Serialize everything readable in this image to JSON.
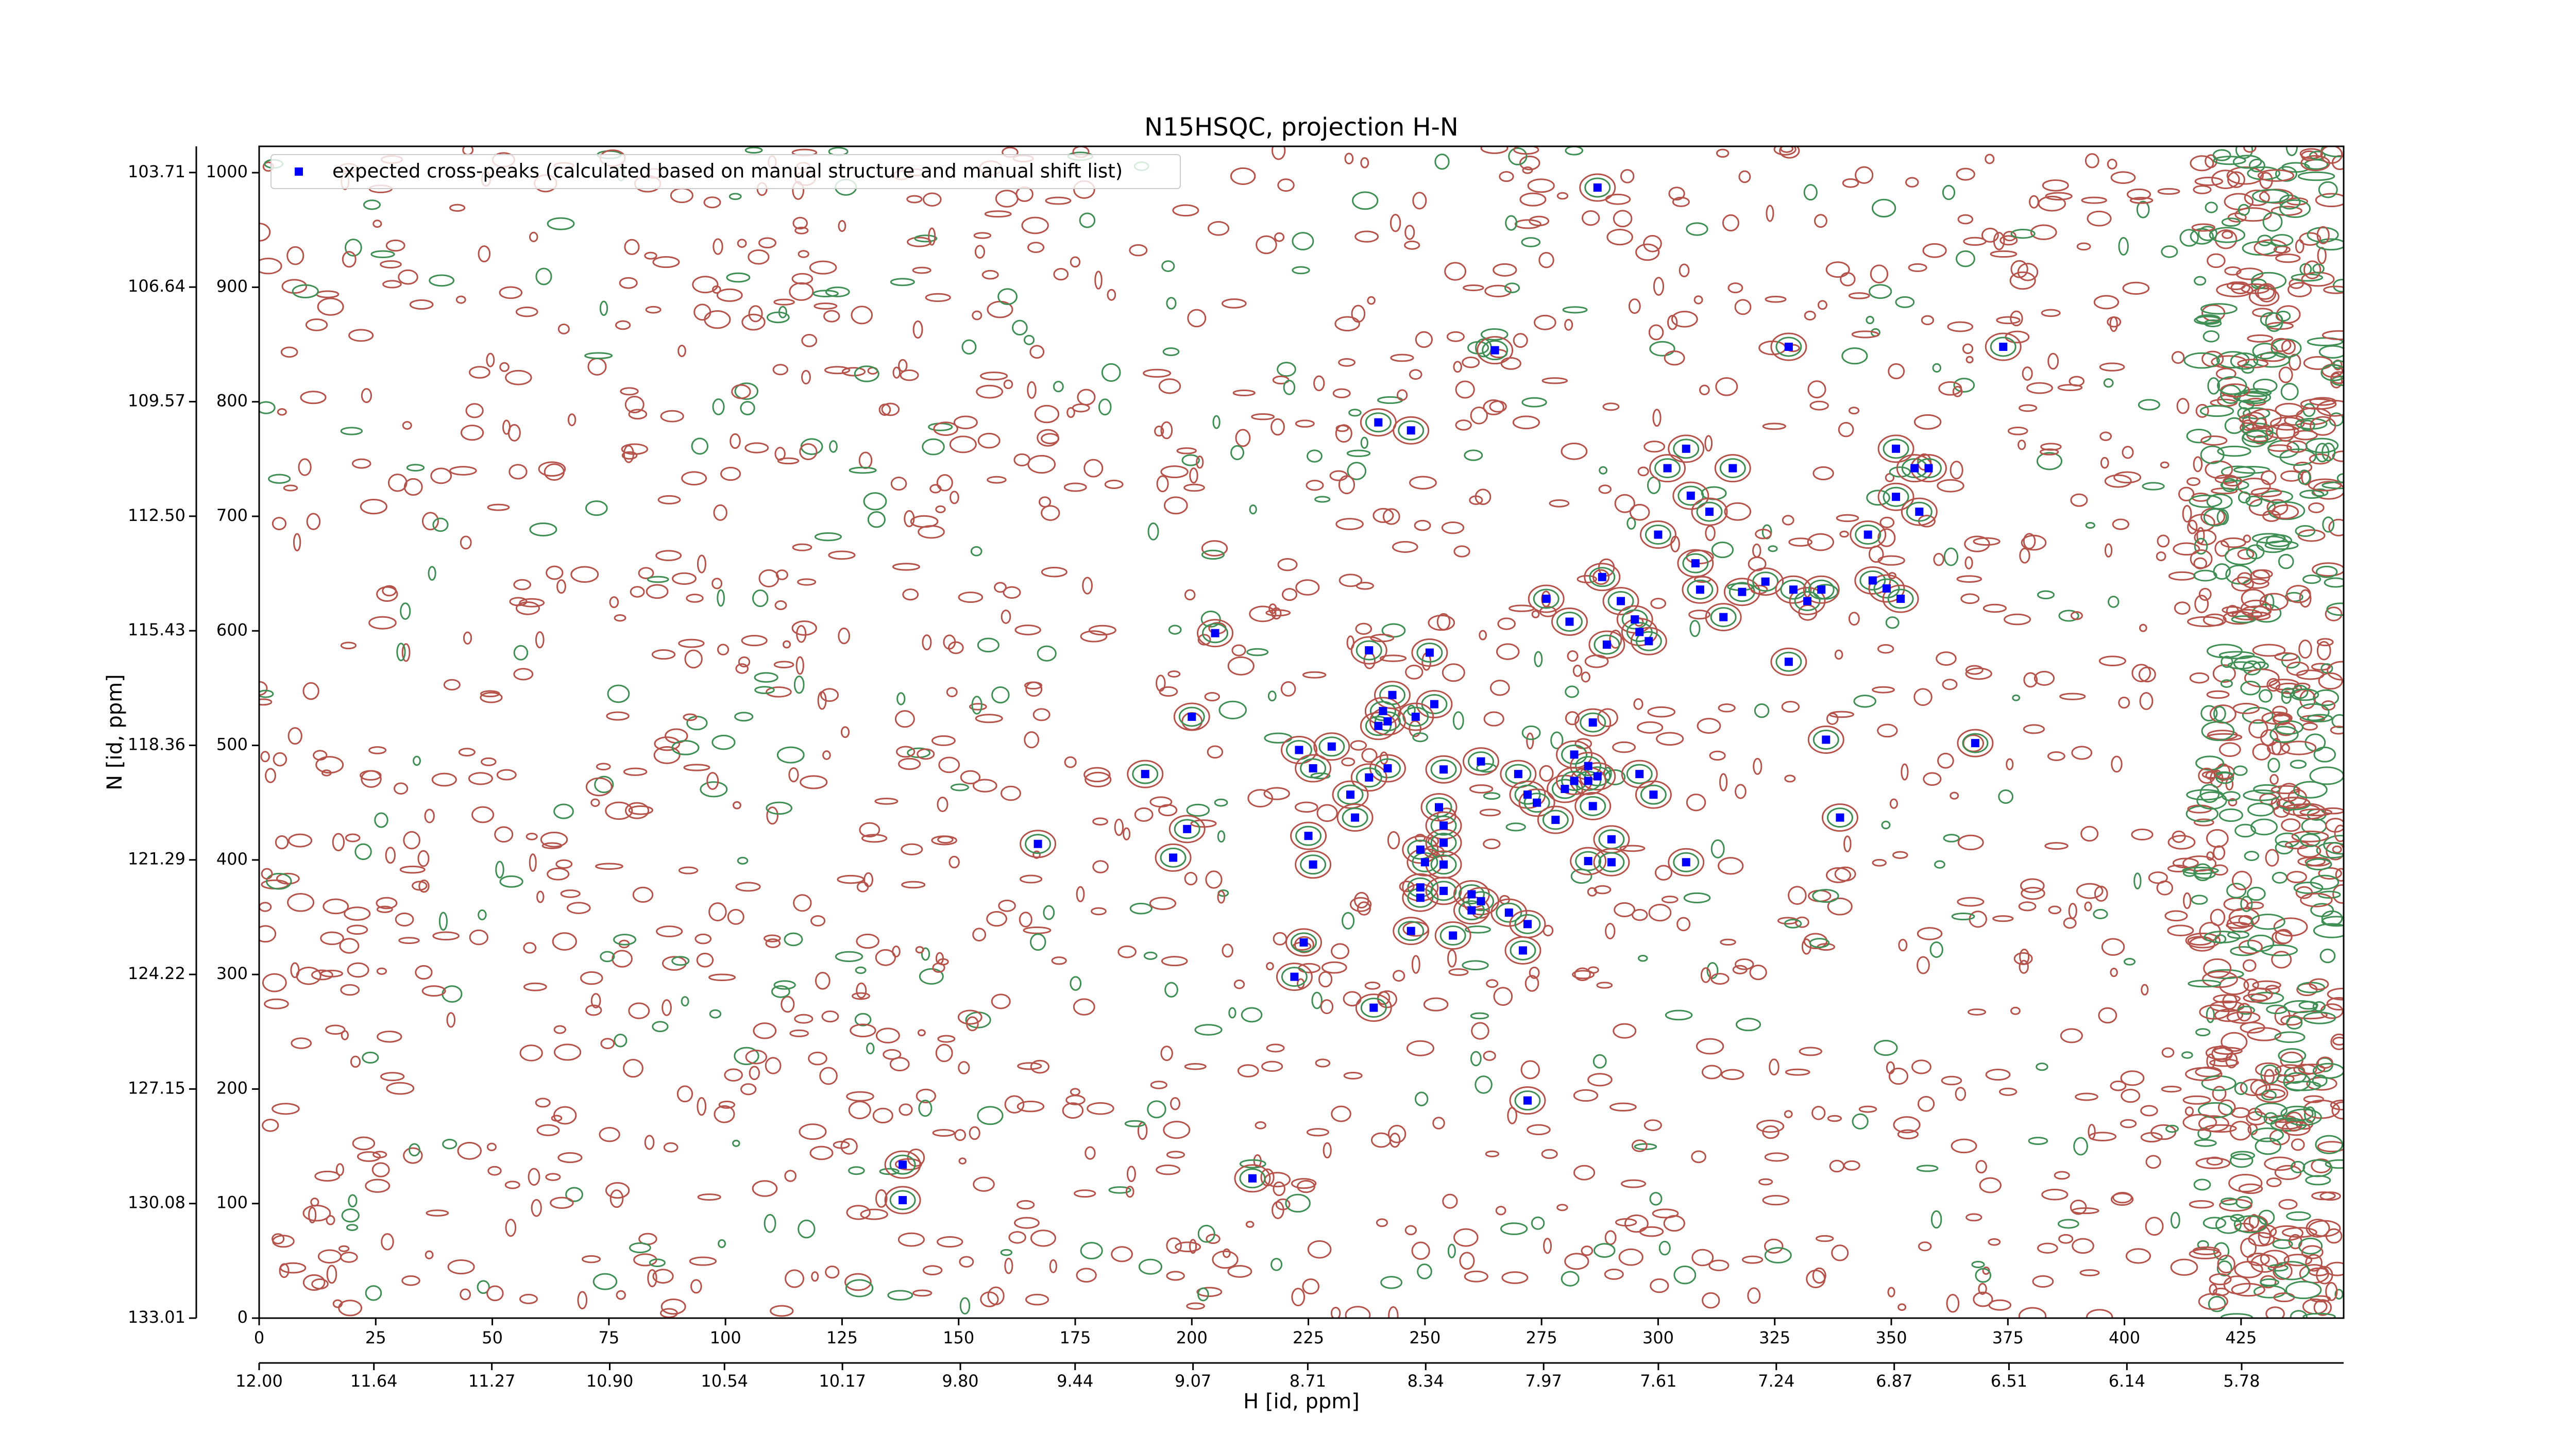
{
  "chart_data": {
    "type": "scatter",
    "title": "N15HSQC, projection H-N",
    "xlabel": "H [id, ppm]",
    "ylabel": "N [id, ppm]",
    "legend": "upper left",
    "series": [
      {
        "name": "expected cross-peaks (calculated based on manual structure and manual shift list)",
        "color": "#0000ff",
        "x": [
          287,
          265,
          328,
          374,
          240,
          247,
          306,
          302,
          316,
          307,
          311,
          351,
          351,
          355,
          358,
          356,
          300,
          345,
          308,
          288,
          346,
          309,
          318,
          323,
          329,
          332,
          335,
          349,
          352,
          276,
          314,
          281,
          292,
          295,
          296,
          289,
          298,
          205,
          238,
          251,
          328,
          243,
          241,
          240,
          252,
          248,
          242,
          200,
          286,
          336,
          368,
          223,
          230,
          226,
          242,
          238,
          190,
          254,
          262,
          270,
          282,
          285,
          287,
          285,
          296,
          272,
          274,
          280,
          282,
          278,
          286,
          299,
          234,
          253,
          254,
          235,
          339,
          199,
          167,
          196,
          225,
          226,
          249,
          250,
          254,
          254,
          290,
          285,
          290,
          306,
          249,
          249,
          254,
          260,
          262,
          260,
          268,
          272,
          247,
          256,
          271,
          224,
          222,
          239,
          272,
          138,
          213,
          138
        ],
        "values": [
          987,
          845,
          848,
          848,
          782,
          775,
          759,
          742,
          742,
          718,
          704,
          759,
          717,
          742,
          742,
          704,
          684,
          684,
          659,
          647,
          644,
          636,
          634,
          643,
          636,
          626,
          636,
          637,
          628,
          628,
          612,
          608,
          626,
          610,
          599,
          588,
          591,
          598,
          583,
          581,
          573,
          544,
          530,
          517,
          536,
          525,
          521,
          525,
          520,
          505,
          502,
          496,
          499,
          480,
          480,
          472,
          475,
          479,
          486,
          475,
          492,
          482,
          473,
          469,
          475,
          457,
          450,
          462,
          469,
          435,
          447,
          457,
          457,
          446,
          430,
          437,
          437,
          427,
          414,
          402,
          421,
          396,
          409,
          398,
          415,
          396,
          418,
          399,
          398,
          398,
          376,
          367,
          373,
          370,
          364,
          356,
          354,
          344,
          338,
          334,
          321,
          328,
          298,
          271,
          190,
          134,
          122,
          103
        ]
      }
    ],
    "xlim": [
      0,
      447
    ],
    "xticks": [
      0,
      25,
      50,
      75,
      100,
      125,
      150,
      175,
      200,
      225,
      250,
      275,
      300,
      325,
      350,
      375,
      400,
      425
    ],
    "ylim": [
      0,
      1023
    ],
    "yticks": [
      0,
      100,
      200,
      300,
      400,
      500,
      600,
      700,
      800,
      900,
      1000
    ],
    "x2lim": [
      12.0,
      5.46
    ],
    "x2ticks": [
      {
        "value": 12,
        "label": "12.00"
      },
      11.64,
      11.27,
      {
        "value": 10.9,
        "label": "10.90"
      },
      10.54,
      10.17,
      {
        "value": 9.8,
        "label": "9.80"
      },
      9.44,
      9.07,
      8.71,
      8.34,
      7.97,
      7.61,
      7.24,
      6.87,
      6.51,
      6.14,
      5.78
    ],
    "y2lim": [
      133.01,
      103.04
    ],
    "y2ticks": [
      133.01,
      130.08,
      127.15,
      124.22,
      121.29,
      118.36,
      115.43,
      {
        "value": 112.5,
        "label": "112.50"
      },
      109.57,
      106.64,
      103.71
    ]
  }
}
